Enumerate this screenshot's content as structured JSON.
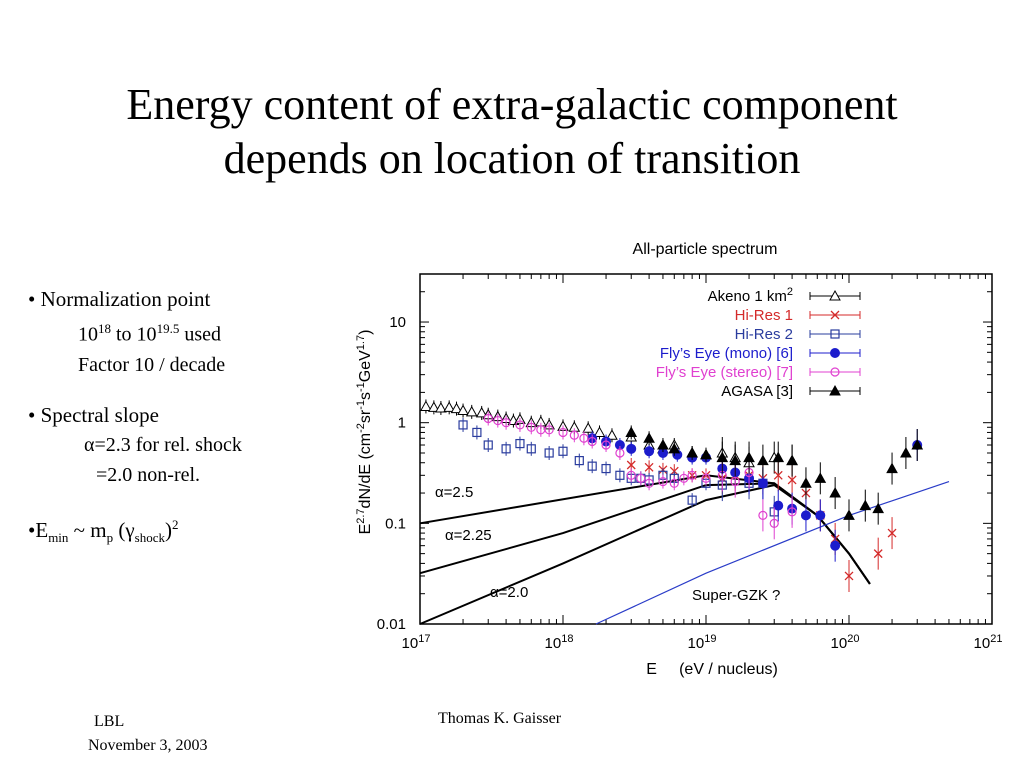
{
  "slide": {
    "title_lines": [
      "Energy content of extra-galactic component",
      "depends on location of transition"
    ],
    "bullets": {
      "b1_head": "• Normalization point",
      "b1_range_a": "10",
      "b1_range_a_exp": "18",
      "b1_range_mid": " to 10",
      "b1_range_b_exp": "19.5",
      "b1_range_tail": " used",
      "b1_factor": "Factor 10 / decade",
      "b2_head": "• Spectral slope",
      "b2_alpha_a": "α=2.3 for rel. shock",
      "b2_alpha_b": "=2.0 non-rel.",
      "b3_prefix": "•E",
      "b3_sub_min": "min",
      "b3_mid": " ~ m",
      "b3_sub_p": "p",
      "b3_paren": " (γ",
      "b3_sub_shock": "shock",
      "b3_close": ")",
      "b3_sup": "2"
    },
    "footer": {
      "left_line1": "LBL",
      "left_line2": "November 3, 2003",
      "center": "Thomas K. Gaisser"
    }
  },
  "chart_data": {
    "type": "scatter",
    "title": "All-particle spectrum",
    "xlabel": "E     (eV / nucleus)",
    "ylabel": "E^2.7 dN/dE   (cm^-2 sr^-1 s^-1 GeV^1.7)",
    "xscale": "log",
    "yscale": "log",
    "xlim": [
      1e+17,
      1e+21
    ],
    "ylim": [
      0.01,
      30
    ],
    "x_ticks": [
      {
        "base": "10",
        "exp": "17",
        "value": 1e+17
      },
      {
        "base": "10",
        "exp": "18",
        "value": 1e+18
      },
      {
        "base": "10",
        "exp": "19",
        "value": 1e+19
      },
      {
        "base": "10",
        "exp": "20",
        "value": 1e+20
      },
      {
        "base": "10",
        "exp": "21",
        "value": 1e+21
      }
    ],
    "y_ticks": [
      {
        "label": "0.01",
        "value": 0.01
      },
      {
        "label": "0.1",
        "value": 0.1
      },
      {
        "label": "1",
        "value": 1
      },
      {
        "label": "10",
        "value": 10
      }
    ],
    "legend_position": "top-right",
    "series": [
      {
        "name": "Akeno 1 km",
        "name_sup": "2",
        "marker": "triangle-open",
        "color": "#000000",
        "points": [
          [
            1.1e+17,
            1.45
          ],
          [
            1.25e+17,
            1.42
          ],
          [
            1.4e+17,
            1.4
          ],
          [
            1.6e+17,
            1.42
          ],
          [
            1.8e+17,
            1.38
          ],
          [
            2e+17,
            1.32
          ],
          [
            2.3e+17,
            1.28
          ],
          [
            2.7e+17,
            1.25
          ],
          [
            3e+17,
            1.2
          ],
          [
            3.5e+17,
            1.15
          ],
          [
            4e+17,
            1.1
          ],
          [
            4.5e+17,
            1.05
          ],
          [
            5e+17,
            1.08
          ],
          [
            6e+17,
            1.0
          ],
          [
            7e+17,
            1.02
          ],
          [
            8e+17,
            0.95
          ],
          [
            1e+18,
            0.92
          ],
          [
            1.2e+18,
            0.9
          ],
          [
            1.5e+18,
            0.88
          ],
          [
            1.8e+18,
            0.8
          ],
          [
            2.2e+18,
            0.75
          ],
          [
            3e+18,
            0.72
          ],
          [
            4e+18,
            0.6
          ],
          [
            5e+18,
            0.55
          ],
          [
            6e+18,
            0.6
          ],
          [
            8e+18,
            0.5
          ],
          [
            1e+19,
            0.48
          ],
          [
            1.3e+19,
            0.5
          ],
          [
            1.6e+19,
            0.45
          ],
          [
            2e+19,
            0.4
          ],
          [
            3e+19,
            0.45
          ],
          [
            4e+19,
            0.42
          ]
        ]
      },
      {
        "name": "Hi-Res 1",
        "marker": "x",
        "color": "#d42a2a",
        "points": [
          [
            3e+18,
            0.38
          ],
          [
            4e+18,
            0.36
          ],
          [
            5e+18,
            0.34
          ],
          [
            6e+18,
            0.33
          ],
          [
            8e+18,
            0.3
          ],
          [
            1e+19,
            0.3
          ],
          [
            1.3e+19,
            0.28
          ],
          [
            1.6e+19,
            0.3
          ],
          [
            2e+19,
            0.3
          ],
          [
            2.5e+19,
            0.28
          ],
          [
            3.2e+19,
            0.3
          ],
          [
            4e+19,
            0.27
          ],
          [
            5e+19,
            0.2
          ],
          [
            6.3e+19,
            0.12
          ],
          [
            8e+19,
            0.07
          ],
          [
            1e+20,
            0.03
          ],
          [
            1.6e+20,
            0.05
          ],
          [
            2e+20,
            0.08
          ]
        ]
      },
      {
        "name": "Hi-Res 2",
        "marker": "square-open",
        "color": "#2a3c9e",
        "points": [
          [
            2e+17,
            0.95
          ],
          [
            2.5e+17,
            0.8
          ],
          [
            3e+17,
            0.6
          ],
          [
            4e+17,
            0.55
          ],
          [
            5e+17,
            0.62
          ],
          [
            6e+17,
            0.55
          ],
          [
            8e+17,
            0.5
          ],
          [
            1e+18,
            0.52
          ],
          [
            1.3e+18,
            0.42
          ],
          [
            1.6e+18,
            0.37
          ],
          [
            2e+18,
            0.35
          ],
          [
            2.5e+18,
            0.3
          ],
          [
            3e+18,
            0.28
          ],
          [
            3.5e+18,
            0.28
          ],
          [
            4e+18,
            0.27
          ],
          [
            5e+18,
            0.3
          ],
          [
            6e+18,
            0.28
          ],
          [
            8e+18,
            0.17
          ],
          [
            1e+19,
            0.25
          ],
          [
            1.3e+19,
            0.24
          ],
          [
            2e+19,
            0.25
          ],
          [
            2.5e+19,
            0.25
          ],
          [
            3e+19,
            0.13
          ]
        ]
      },
      {
        "name": "Fly’s Eye (mono) [6]",
        "marker": "circle-filled",
        "color": "#1c1ccc",
        "points": [
          [
            1.6e+18,
            0.7
          ],
          [
            2e+18,
            0.65
          ],
          [
            2.5e+18,
            0.6
          ],
          [
            3e+18,
            0.55
          ],
          [
            4e+18,
            0.52
          ],
          [
            5e+18,
            0.5
          ],
          [
            6.3e+18,
            0.48
          ],
          [
            8e+18,
            0.45
          ],
          [
            1e+19,
            0.45
          ],
          [
            1.3e+19,
            0.35
          ],
          [
            1.6e+19,
            0.32
          ],
          [
            2e+19,
            0.28
          ],
          [
            2.5e+19,
            0.25
          ],
          [
            3.2e+19,
            0.15
          ],
          [
            4e+19,
            0.14
          ],
          [
            5e+19,
            0.12
          ],
          [
            6.3e+19,
            0.12
          ],
          [
            8e+19,
            0.06
          ],
          [
            3e+20,
            0.6
          ]
        ]
      },
      {
        "name": "Fly’s Eye (stereo) [7]",
        "marker": "circle-open",
        "color": "#e040d0",
        "points": [
          [
            3e+17,
            1.1
          ],
          [
            3.5e+17,
            1.05
          ],
          [
            4e+17,
            1.0
          ],
          [
            5e+17,
            0.95
          ],
          [
            6e+17,
            0.9
          ],
          [
            7e+17,
            0.85
          ],
          [
            8e+17,
            0.85
          ],
          [
            1e+18,
            0.8
          ],
          [
            1.2e+18,
            0.75
          ],
          [
            1.4e+18,
            0.7
          ],
          [
            1.6e+18,
            0.65
          ],
          [
            2e+18,
            0.6
          ],
          [
            2.5e+18,
            0.5
          ],
          [
            3e+18,
            0.3
          ],
          [
            3.5e+18,
            0.28
          ],
          [
            4e+18,
            0.25
          ],
          [
            5e+18,
            0.26
          ],
          [
            6e+18,
            0.25
          ],
          [
            7e+18,
            0.28
          ],
          [
            8e+18,
            0.3
          ],
          [
            1e+19,
            0.28
          ],
          [
            1.3e+19,
            0.3
          ],
          [
            1.6e+19,
            0.26
          ],
          [
            2e+19,
            0.32
          ],
          [
            2.5e+19,
            0.12
          ],
          [
            3e+19,
            0.1
          ],
          [
            4e+19,
            0.13
          ]
        ]
      },
      {
        "name": "AGASA [3]",
        "marker": "triangle-filled",
        "color": "#000000",
        "points": [
          [
            3e+18,
            0.8
          ],
          [
            4e+18,
            0.7
          ],
          [
            5e+18,
            0.6
          ],
          [
            6e+18,
            0.55
          ],
          [
            8e+18,
            0.5
          ],
          [
            1e+19,
            0.48
          ],
          [
            1.3e+19,
            0.45
          ],
          [
            1.6e+19,
            0.42
          ],
          [
            2e+19,
            0.45
          ],
          [
            2.5e+19,
            0.42
          ],
          [
            3.2e+19,
            0.45
          ],
          [
            4e+19,
            0.42
          ],
          [
            5e+19,
            0.25
          ],
          [
            6.3e+19,
            0.28
          ],
          [
            8e+19,
            0.2
          ],
          [
            1e+20,
            0.12
          ],
          [
            1.3e+20,
            0.15
          ],
          [
            1.6e+20,
            0.14
          ],
          [
            2e+20,
            0.35
          ],
          [
            2.5e+20,
            0.5
          ],
          [
            3e+20,
            0.6
          ]
        ]
      }
    ],
    "curves": [
      {
        "label": "α=2.5",
        "points": [
          [
            1e+17,
            0.1
          ],
          [
            1e+19,
            0.3
          ],
          [
            3e+19,
            0.25
          ],
          [
            6e+19,
            0.12
          ],
          [
            1e+20,
            0.05
          ],
          [
            1.4e+20,
            0.025
          ]
        ]
      },
      {
        "label": "α=2.25",
        "points": [
          [
            1e+17,
            0.032
          ],
          [
            1e+18,
            0.08
          ],
          [
            1e+19,
            0.24
          ],
          [
            3e+19,
            0.25
          ],
          [
            6e+19,
            0.12
          ],
          [
            1e+20,
            0.05
          ],
          [
            1.4e+20,
            0.025
          ]
        ]
      },
      {
        "label": "α=2.0",
        "points": [
          [
            1e+17,
            0.01
          ],
          [
            1e+18,
            0.04
          ],
          [
            1e+19,
            0.17
          ],
          [
            3e+19,
            0.24
          ],
          [
            6e+19,
            0.12
          ],
          [
            1e+20,
            0.05
          ],
          [
            1.4e+20,
            0.025
          ]
        ]
      }
    ],
    "super_gzk": {
      "label": "Super-GZK ?",
      "color": "#2a3cc8",
      "points": [
        [
          1.7e+18,
          0.01
        ],
        [
          1e+19,
          0.032
        ],
        [
          1e+20,
          0.12
        ],
        [
          5e+20,
          0.26
        ]
      ]
    }
  }
}
